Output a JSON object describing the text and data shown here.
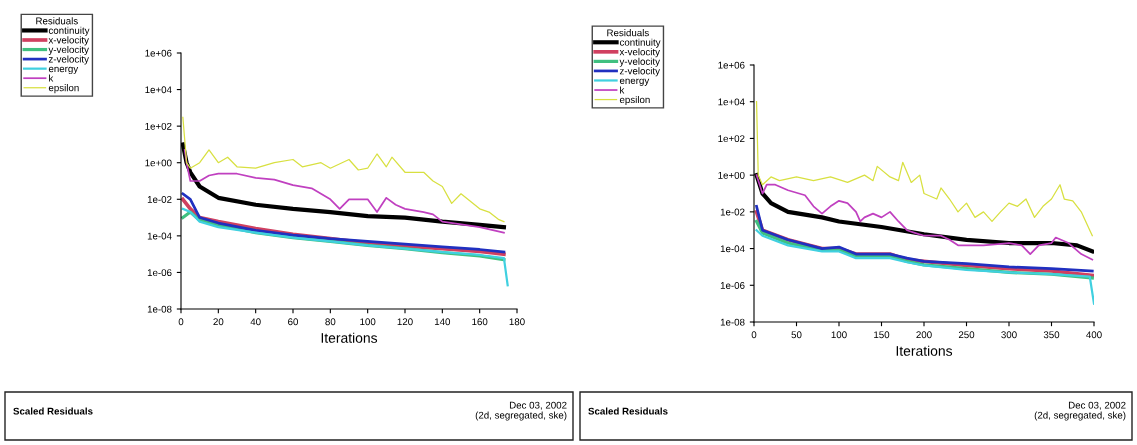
{
  "chart_data": [
    {
      "type": "line",
      "title": "Scaled Residuals",
      "annotations": [
        "Dec 03, 2002",
        "(2d, segregated, ske)"
      ],
      "xlabel": "Iterations",
      "legend_title": "Residuals",
      "legend": "top left",
      "log": "y",
      "grid": false,
      "xlim": [
        0,
        180
      ],
      "xticks": [
        0,
        20,
        40,
        60,
        80,
        100,
        120,
        140,
        160,
        180
      ],
      "ylim": [
        1e-08,
        1000000.0
      ],
      "yticks": [
        {
          "value": 1e-08,
          "label": "1e-08"
        },
        {
          "value": 1e-06,
          "label": "1e-06"
        },
        {
          "value": 0.0001,
          "label": "1e-04"
        },
        {
          "value": 0.01,
          "label": "1e-02"
        },
        {
          "value": 1,
          "label": "1e+00"
        },
        {
          "value": 100,
          "label": "1e+02"
        },
        {
          "value": 10000,
          "label": "1e+04"
        },
        {
          "value": 1000000,
          "label": "1e+06"
        }
      ],
      "series": [
        {
          "name": "continuity",
          "color": "#000000",
          "x": [
            1,
            3,
            5,
            10,
            20,
            40,
            60,
            80,
            100,
            120,
            140,
            160,
            173
          ],
          "values": [
            10,
            1,
            0.3,
            0.05,
            0.012,
            0.005,
            0.003,
            0.002,
            0.0012,
            0.001,
            0.0006,
            0.0004,
            0.0003
          ]
        },
        {
          "name": "x-velocity",
          "color": "#d04060",
          "x": [
            1,
            5,
            10,
            20,
            40,
            60,
            80,
            100,
            120,
            140,
            160,
            173
          ],
          "values": [
            0.01,
            0.003,
            0.001,
            0.0006,
            0.00025,
            0.00012,
            7e-05,
            4e-05,
            2.8e-05,
            2e-05,
            1.4e-05,
            1e-05
          ]
        },
        {
          "name": "y-velocity",
          "color": "#40c080",
          "x": [
            1,
            5,
            10,
            20,
            40,
            60,
            80,
            100,
            120,
            140,
            160,
            173
          ],
          "values": [
            0.001,
            0.002,
            0.0007,
            0.0004,
            0.00015,
            8e-05,
            5e-05,
            3e-05,
            2e-05,
            1.2e-05,
            8e-06,
            5e-06
          ]
        },
        {
          "name": "z-velocity",
          "color": "#2030c0",
          "x": [
            1,
            5,
            10,
            20,
            40,
            60,
            80,
            100,
            120,
            140,
            160,
            173
          ],
          "values": [
            0.02,
            0.01,
            0.001,
            0.0005,
            0.0002,
            0.00011,
            7e-05,
            5e-05,
            3.5e-05,
            2.5e-05,
            1.8e-05,
            1.3e-05
          ]
        },
        {
          "name": "energy",
          "color": "#40d0e0",
          "x": [
            1,
            5,
            10,
            20,
            40,
            60,
            80,
            100,
            120,
            140,
            160,
            173,
            175
          ],
          "values": [
            0.003,
            0.002,
            0.0006,
            0.0003,
            0.00015,
            8e-05,
            5e-05,
            3e-05,
            2e-05,
            1.3e-05,
            9e-06,
            6e-06,
            2e-07
          ]
        },
        {
          "name": "k",
          "color": "#c040c0",
          "x": [
            2,
            3,
            5,
            10,
            15,
            20,
            30,
            40,
            50,
            60,
            70,
            80,
            85,
            90,
            100,
            105,
            110,
            115,
            120,
            130,
            135,
            140,
            160,
            173
          ],
          "values": [
            5,
            1,
            0.1,
            0.1,
            0.2,
            0.25,
            0.25,
            0.15,
            0.12,
            0.06,
            0.04,
            0.01,
            0.003,
            0.01,
            0.01,
            0.002,
            0.012,
            0.005,
            0.003,
            0.002,
            0.0015,
            0.0006,
            0.0003,
            0.00015
          ]
        },
        {
          "name": "epsilon",
          "color": "#d8e040",
          "x": [
            1,
            3,
            5,
            10,
            15,
            20,
            25,
            30,
            40,
            50,
            60,
            65,
            75,
            80,
            90,
            95,
            100,
            105,
            110,
            113,
            120,
            130,
            135,
            140,
            145,
            150,
            160,
            165,
            170,
            173
          ],
          "values": [
            300,
            1,
            0.5,
            1,
            5,
            1,
            2,
            0.6,
            0.5,
            1,
            1.5,
            0.6,
            1,
            0.5,
            1.5,
            0.4,
            0.5,
            3,
            0.6,
            2,
            0.3,
            0.3,
            0.1,
            0.05,
            0.006,
            0.02,
            0.003,
            0.002,
            0.0008,
            0.0006
          ]
        }
      ]
    },
    {
      "type": "line",
      "title": "Scaled Residuals",
      "annotations": [
        "Dec 03, 2002",
        "(2d, segregated, ske)"
      ],
      "xlabel": "Iterations",
      "legend_title": "Residuals",
      "legend": "top left",
      "log": "y",
      "grid": false,
      "xlim": [
        0,
        400
      ],
      "xticks": [
        0,
        50,
        100,
        150,
        200,
        250,
        300,
        350,
        400
      ],
      "ylim": [
        1e-08,
        1000000.0
      ],
      "yticks": [
        {
          "value": 1e-08,
          "label": "1e-08"
        },
        {
          "value": 1e-06,
          "label": "1e-06"
        },
        {
          "value": 0.0001,
          "label": "1e-04"
        },
        {
          "value": 0.01,
          "label": "1e-02"
        },
        {
          "value": 1,
          "label": "1e+00"
        },
        {
          "value": 100,
          "label": "1e+02"
        },
        {
          "value": 10000,
          "label": "1e+04"
        },
        {
          "value": 1000000,
          "label": "1e+06"
        }
      ],
      "series": [
        {
          "name": "continuity",
          "color": "#000000",
          "x": [
            3,
            10,
            20,
            40,
            80,
            100,
            150,
            200,
            250,
            300,
            350,
            380,
            398
          ],
          "values": [
            1,
            0.1,
            0.03,
            0.01,
            0.005,
            0.003,
            0.0015,
            0.0006,
            0.0003,
            0.0002,
            0.0002,
            0.00015,
            7e-05
          ]
        },
        {
          "name": "x-velocity",
          "color": "#d04060",
          "x": [
            3,
            10,
            40,
            80,
            100,
            120,
            160,
            180,
            200,
            250,
            300,
            350,
            398
          ],
          "values": [
            0.01,
            0.001,
            0.0003,
            0.0001,
            0.0001,
            5e-05,
            5e-05,
            2.5e-05,
            2e-05,
            1.2e-05,
            8e-06,
            6e-06,
            3.5e-06
          ]
        },
        {
          "name": "y-velocity",
          "color": "#40c080",
          "x": [
            3,
            10,
            40,
            80,
            100,
            120,
            160,
            180,
            200,
            250,
            300,
            350,
            398
          ],
          "values": [
            0.003,
            0.0007,
            0.0002,
            8e-05,
            8e-05,
            4e-05,
            4e-05,
            2e-05,
            1.3e-05,
            8e-06,
            5e-06,
            4e-06,
            2.5e-06
          ]
        },
        {
          "name": "z-velocity",
          "color": "#2030c0",
          "x": [
            3,
            10,
            40,
            80,
            100,
            120,
            160,
            180,
            200,
            250,
            300,
            350,
            398
          ],
          "values": [
            0.02,
            0.001,
            0.0003,
            0.0001,
            0.00012,
            5e-05,
            5e-05,
            3e-05,
            2e-05,
            1.5e-05,
            1e-05,
            8e-06,
            6e-06
          ]
        },
        {
          "name": "energy",
          "color": "#40d0e0",
          "x": [
            3,
            10,
            40,
            80,
            100,
            120,
            160,
            180,
            200,
            250,
            300,
            350,
            395,
            400
          ],
          "values": [
            0.001,
            0.0005,
            0.00015,
            7e-05,
            7e-05,
            3e-05,
            3e-05,
            1.8e-05,
            1.2e-05,
            7e-06,
            5e-06,
            4e-06,
            3e-06,
            1e-07
          ]
        },
        {
          "name": "k",
          "color": "#c040c0",
          "x": [
            3,
            10,
            15,
            25,
            40,
            60,
            70,
            80,
            90,
            100,
            110,
            120,
            125,
            130,
            140,
            150,
            160,
            170,
            180,
            190,
            200,
            220,
            230,
            240,
            250,
            270,
            300,
            315,
            325,
            335,
            350,
            355,
            370,
            385,
            398
          ],
          "values": [
            1,
            0.1,
            0.3,
            0.3,
            0.15,
            0.08,
            0.02,
            0.008,
            0.02,
            0.04,
            0.03,
            0.01,
            0.003,
            0.005,
            0.008,
            0.005,
            0.01,
            0.003,
            0.001,
            0.0007,
            0.0005,
            0.0005,
            0.0003,
            0.00015,
            0.00015,
            0.00015,
            0.0002,
            0.00015,
            5e-05,
            0.00015,
            0.0002,
            0.0004,
            0.0002,
            5e-05,
            2.5e-05
          ]
        },
        {
          "name": "epsilon",
          "color": "#d8e040",
          "x": [
            3,
            5,
            10,
            20,
            30,
            50,
            70,
            90,
            110,
            130,
            140,
            145,
            160,
            170,
            175,
            185,
            195,
            200,
            215,
            220,
            230,
            240,
            250,
            260,
            270,
            280,
            290,
            300,
            310,
            320,
            330,
            340,
            350,
            360,
            365,
            375,
            385,
            395,
            398
          ],
          "values": [
            10000,
            1,
            0.3,
            0.8,
            0.5,
            0.8,
            0.5,
            0.8,
            0.4,
            1,
            0.5,
            3,
            0.8,
            0.5,
            5,
            0.4,
            1,
            0.1,
            0.05,
            0.2,
            0.05,
            0.01,
            0.03,
            0.005,
            0.01,
            0.003,
            0.01,
            0.03,
            0.02,
            0.05,
            0.005,
            0.02,
            0.05,
            0.3,
            0.05,
            0.04,
            0.01,
            0.001,
            0.0005
          ]
        }
      ]
    }
  ]
}
